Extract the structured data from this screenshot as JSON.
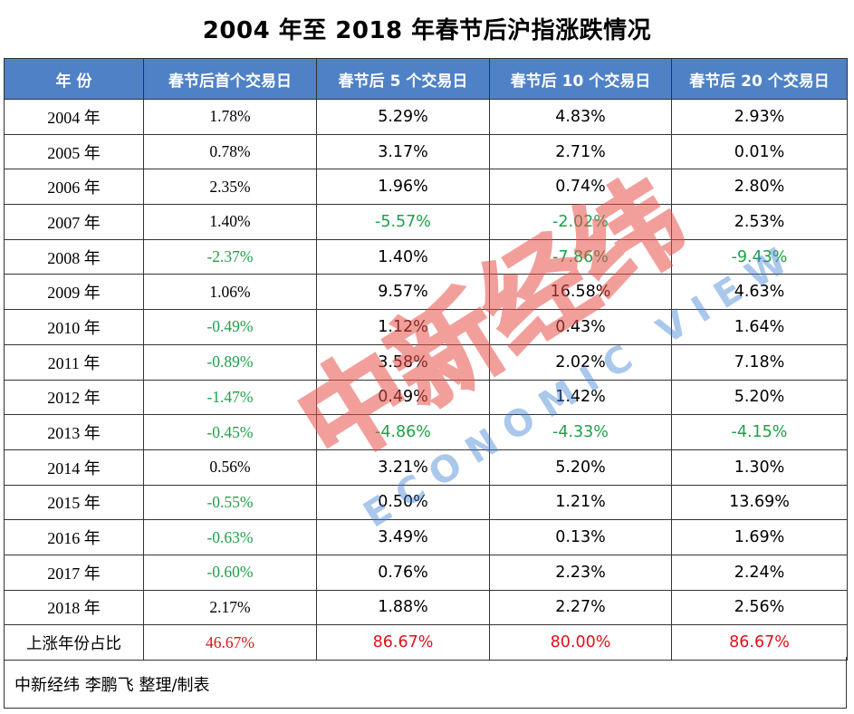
{
  "title": "2004 年至  2018 年春节后沪指涨跌情况",
  "headers": [
    "年  份",
    "春节后首个交易日",
    "春节后 5 个交易日",
    "春节后 10 个交易日",
    "春节后 20 个交易日"
  ],
  "rows": [
    {
      "year": "2004 年",
      "d1": "1.78%",
      "d5": "5.29%",
      "d10": "4.83%",
      "d20": "2.93%"
    },
    {
      "year": "2005 年",
      "d1": "0.78%",
      "d5": "3.17%",
      "d10": "2.71%",
      "d20": "0.01%"
    },
    {
      "year": "2006 年",
      "d1": "2.35%",
      "d5": "1.96%",
      "d10": "0.74%",
      "d20": "2.80%"
    },
    {
      "year": "2007 年",
      "d1": "1.40%",
      "d5": "-5.57%",
      "d10": "-2.02%",
      "d20": "2.53%"
    },
    {
      "year": "2008 年",
      "d1": "-2.37%",
      "d5": "1.40%",
      "d10": "-7.86%",
      "d20": "-9.43%"
    },
    {
      "year": "2009 年",
      "d1": "1.06%",
      "d5": "9.57%",
      "d10": "16.58%",
      "d20": "4.63%"
    },
    {
      "year": "2010 年",
      "d1": "-0.49%",
      "d5": "1.12%",
      "d10": "0.43%",
      "d20": "1.64%"
    },
    {
      "year": "2011 年",
      "d1": "-0.89%",
      "d5": "3.58%",
      "d10": "2.02%",
      "d20": "7.18%"
    },
    {
      "year": "2012 年",
      "d1": "-1.47%",
      "d5": "0.49%",
      "d10": "1.42%",
      "d20": "5.20%"
    },
    {
      "year": "2013 年",
      "d1": "-0.45%",
      "d5": "-4.86%",
      "d10": "-4.33%",
      "d20": "-4.15%"
    },
    {
      "year": "2014 年",
      "d1": "0.56%",
      "d5": "3.21%",
      "d10": "5.20%",
      "d20": "1.30%"
    },
    {
      "year": "2015 年",
      "d1": "-0.55%",
      "d5": "0.50%",
      "d10": "1.21%",
      "d20": "13.69%"
    },
    {
      "year": "2016 年",
      "d1": "-0.63%",
      "d5": "3.49%",
      "d10": "0.13%",
      "d20": "1.69%"
    },
    {
      "year": "2017 年",
      "d1": "-0.60%",
      "d5": "0.76%",
      "d10": "2.23%",
      "d20": "2.24%"
    },
    {
      "year": "2018 年",
      "d1": "2.17%",
      "d5": "1.88%",
      "d10": "2.27%",
      "d20": "2.56%"
    }
  ],
  "summary": {
    "label": "上涨年份占比",
    "d1": "46.67%",
    "d5": "86.67%",
    "d10": "80.00%",
    "d20": "86.67%"
  },
  "footer": "中新经纬  李鹏飞  整理/制表",
  "watermark": {
    "cn": "中新经纬",
    "en": "ECONOMIC VIEW",
    "color_red": "#e8524a",
    "color_blue": "#3f7fd4"
  },
  "colors": {
    "header_bg": "#4f81c6",
    "negative": "#1fa04a",
    "summary": "#e0101a"
  }
}
